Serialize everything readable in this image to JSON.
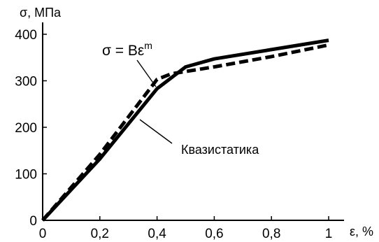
{
  "chart_data": {
    "type": "line",
    "title": "",
    "xlabel": "ε, %",
    "ylabel": "σ, МПа",
    "xlim": [
      0,
      1.0
    ],
    "ylim": [
      0,
      400
    ],
    "x_ticks": [
      {
        "value": 0,
        "label": "0"
      },
      {
        "value": 0.2,
        "label": "0,2"
      },
      {
        "value": 0.4,
        "label": "0,4"
      },
      {
        "value": 0.6,
        "label": "0,6"
      },
      {
        "value": 0.8,
        "label": "0,8"
      },
      {
        "value": 1.0,
        "label": "1"
      }
    ],
    "y_ticks": [
      {
        "value": 0,
        "label": "0"
      },
      {
        "value": 100,
        "label": "100"
      },
      {
        "value": 200,
        "label": "200"
      },
      {
        "value": 300,
        "label": "300"
      },
      {
        "value": 400,
        "label": "400"
      }
    ],
    "grid": false,
    "legend": "none",
    "series": [
      {
        "style": "solid",
        "color": "#000000",
        "points": [
          [
            0,
            0
          ],
          [
            0.2,
            132
          ],
          [
            0.4,
            283
          ],
          [
            0.5,
            330
          ],
          [
            0.6,
            347
          ],
          [
            0.8,
            367
          ],
          [
            1.0,
            387
          ]
        ]
      },
      {
        "style": "dashed",
        "color": "#000000",
        "points": [
          [
            0,
            0
          ],
          [
            0.2,
            142
          ],
          [
            0.4,
            303
          ],
          [
            0.45,
            315
          ],
          [
            0.6,
            330
          ],
          [
            0.8,
            352
          ],
          [
            1.0,
            377
          ]
        ]
      }
    ],
    "annotations": [
      {
        "kind": "formula",
        "base": "σ = Bε",
        "sup": "m",
        "target_series": 1,
        "target_x": 0.43
      },
      {
        "kind": "label",
        "text": "Квазистатика",
        "target_series": 0,
        "target_x": 0.38
      }
    ]
  }
}
